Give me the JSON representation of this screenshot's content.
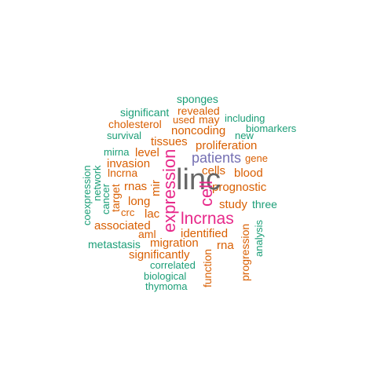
{
  "colors": {
    "green": "#1b9e77",
    "orange": "#d95f02",
    "purple": "#7570b3",
    "magenta": "#e7298a",
    "gray": "#666666"
  },
  "words": {
    "linc": "linc",
    "lncrnas": "lncrnas",
    "expression": "expression",
    "cell": "cell",
    "patients": "patients",
    "proliferation": "proliferation",
    "prognostic": "prognostic",
    "identified": "identified",
    "migration": "migration",
    "noncoding": "noncoding",
    "tissues": "tissues",
    "cells": "cells",
    "blood": "blood",
    "invasion": "invasion",
    "associated": "associated",
    "significantly": "significantly",
    "long": "long",
    "rnas": "rnas",
    "lncrna": "lncrna",
    "level": "level",
    "study": "study",
    "cholesterol": "cholesterol",
    "used": "used",
    "may": "may",
    "revealed": "revealed",
    "sponges": "sponges",
    "significant": "significant",
    "including": "including",
    "biomarkers": "biomarkers",
    "new": "new",
    "survival": "survival",
    "mirna": "mirna",
    "gene": "gene",
    "three": "three",
    "crc": "crc",
    "lac": "lac",
    "aml": "aml",
    "rna": "rna",
    "metastasis": "metastasis",
    "correlated": "correlated",
    "biological": "biological",
    "thymoma": "thymoma",
    "mir": "mir",
    "target": "target",
    "cancer": "cancer",
    "network": "network",
    "coexpression": "coexpression",
    "function": "function",
    "progression": "progression",
    "analysis": "analysis"
  }
}
